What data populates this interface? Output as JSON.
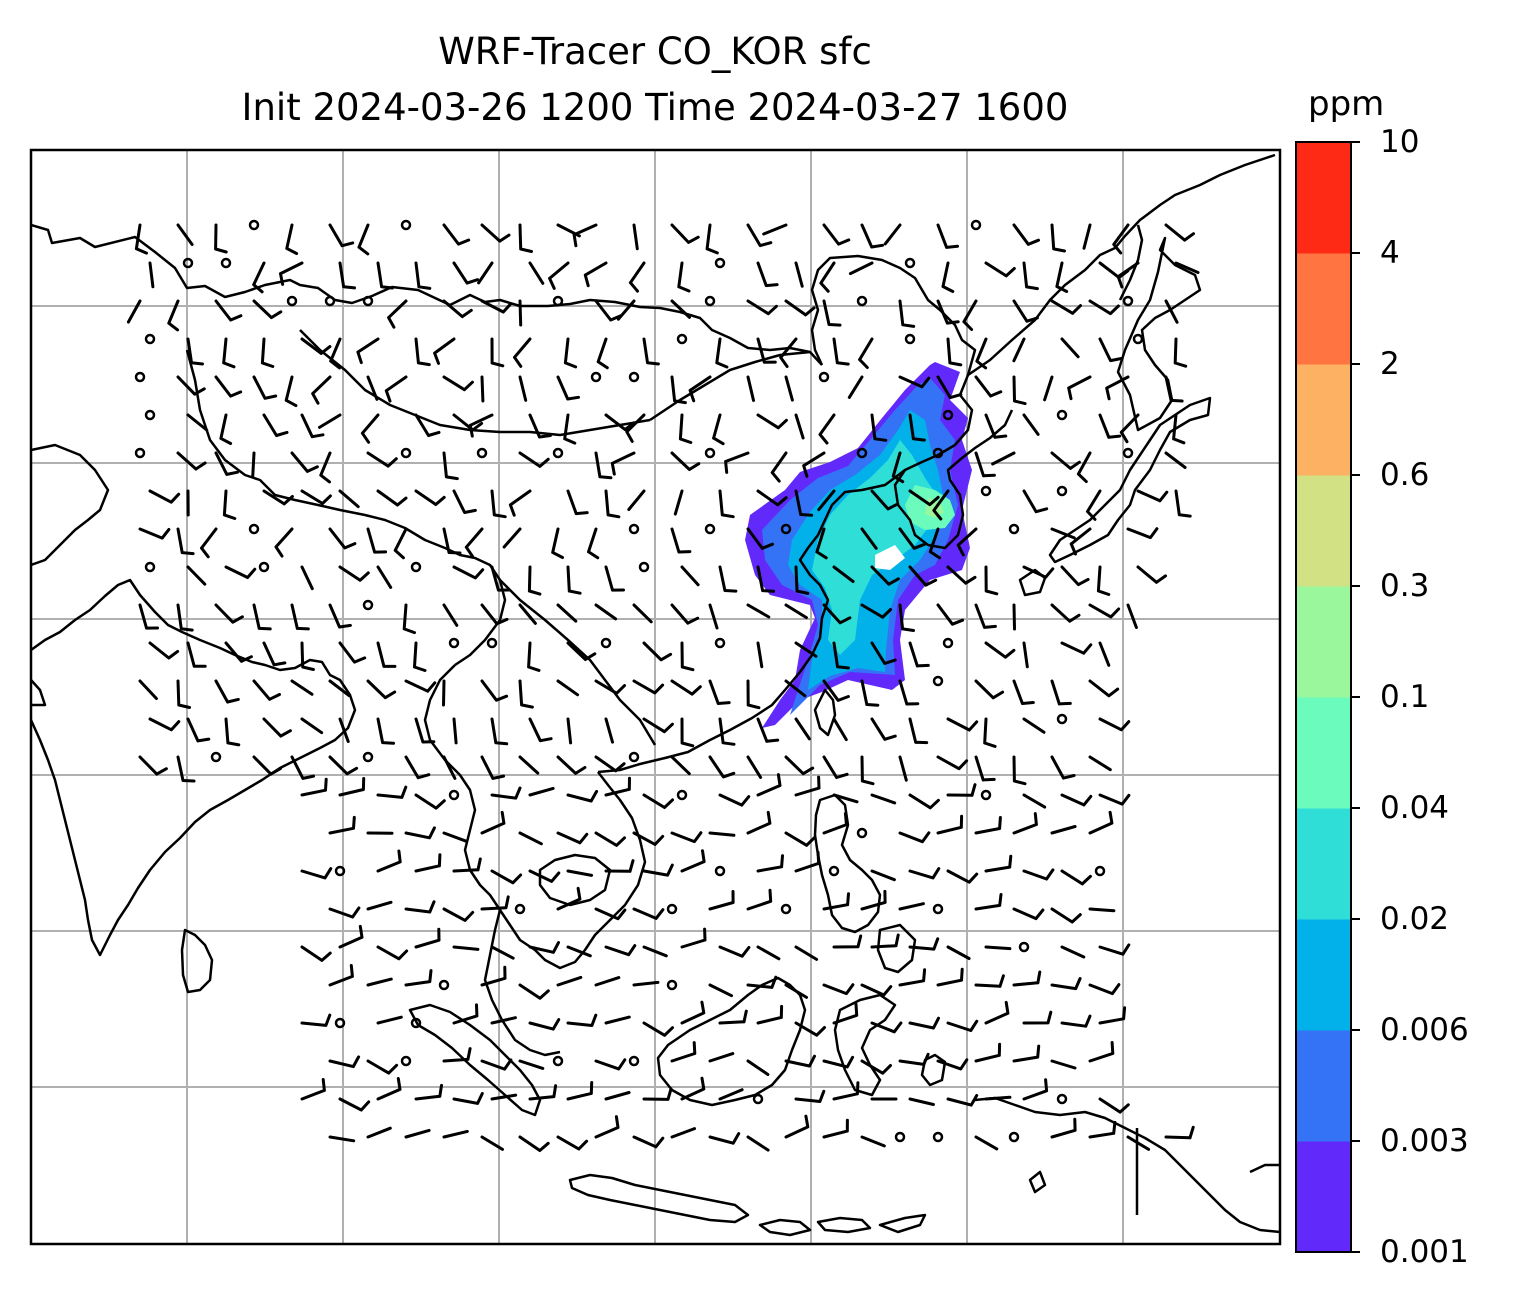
{
  "title": {
    "line1": "WRF-Tracer CO_KOR sfc",
    "line2": "Init 2024-03-26 1200 Time 2024-03-27 1600"
  },
  "colorbar": {
    "unit": "ppm",
    "labels": [
      "10",
      "4",
      "2",
      "0.6",
      "0.3",
      "0.1",
      "0.04",
      "0.02",
      "0.006",
      "0.003",
      "0.001"
    ],
    "levels": [
      0.001,
      0.003,
      0.006,
      0.02,
      0.04,
      0.1,
      0.3,
      0.6,
      2,
      4,
      10
    ],
    "colors": [
      "#6229fb",
      "#3473f6",
      "#03b1ea",
      "#2fdfd7",
      "#6bfcbd",
      "#9af79c",
      "#d1e183",
      "#fdb162",
      "#ff7440",
      "#ff2a16"
    ]
  },
  "map": {
    "gridlines": true,
    "grid_color": "#b0b0b0",
    "coastline_color": "#000000",
    "tracer_plume_levels_shown": [
      "0.001",
      "0.003",
      "0.006",
      "0.02",
      "0.04",
      "0.1"
    ],
    "wind_barbs": true
  }
}
